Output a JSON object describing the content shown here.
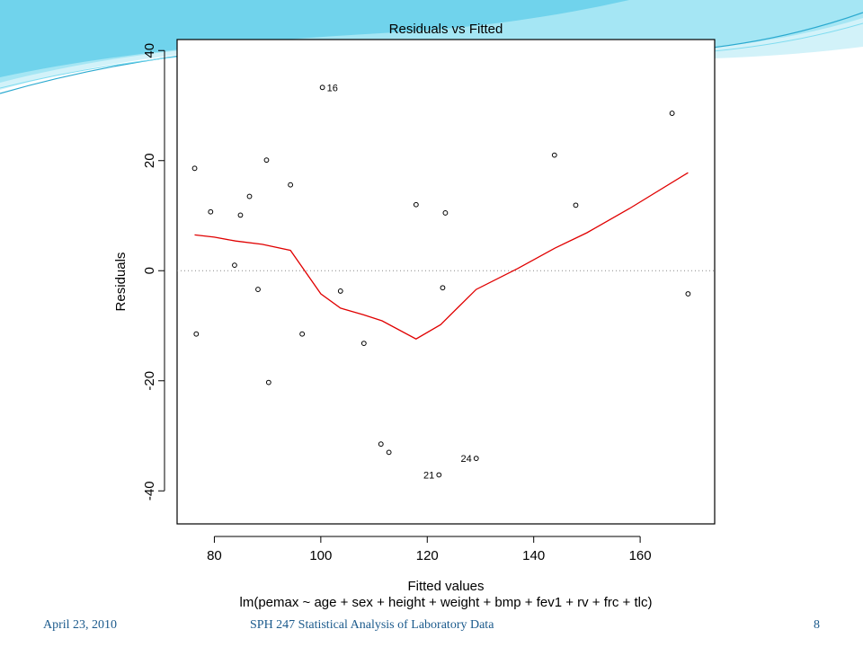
{
  "footer": {
    "date": "April 23, 2010",
    "course": "SPH 247 Statistical Analysis of Laboratory Data",
    "page_number": "8"
  },
  "theme": {
    "accent_light": "#bfeef8",
    "accent_mid": "#6fd6ee",
    "accent_dark": "#2aa9cf",
    "footer_text": "#1b5a8c",
    "smooth_line": "#e00000"
  },
  "chart_data": {
    "type": "scatter",
    "title": "Residuals vs Fitted",
    "xlabel": "Fitted values",
    "subtitle": "lm(pemax ~ age + sex + height + weight + bmp + fev1 + rv + frc + tlc)",
    "ylabel": "Residuals",
    "xlim": [
      73,
      174
    ],
    "ylim": [
      -46,
      42
    ],
    "x_ticks": [
      80,
      100,
      120,
      140,
      160
    ],
    "y_ticks": [
      -40,
      -20,
      0,
      20,
      40
    ],
    "reference_line_y": 0,
    "grid": false,
    "points": [
      {
        "x": 76.3,
        "y": 18.6
      },
      {
        "x": 76.6,
        "y": -11.5
      },
      {
        "x": 79.3,
        "y": 10.7
      },
      {
        "x": 83.8,
        "y": 1.0
      },
      {
        "x": 84.9,
        "y": 10.1
      },
      {
        "x": 86.6,
        "y": 13.5
      },
      {
        "x": 88.2,
        "y": -3.4
      },
      {
        "x": 89.8,
        "y": 20.1
      },
      {
        "x": 90.2,
        "y": -20.3
      },
      {
        "x": 94.3,
        "y": 15.6
      },
      {
        "x": 96.5,
        "y": -11.5
      },
      {
        "x": 100.3,
        "y": 33.3,
        "label": "16"
      },
      {
        "x": 103.7,
        "y": -3.7
      },
      {
        "x": 108.1,
        "y": -13.2
      },
      {
        "x": 111.3,
        "y": -31.5
      },
      {
        "x": 112.8,
        "y": -33.0
      },
      {
        "x": 117.9,
        "y": 12.0
      },
      {
        "x": 122.2,
        "y": -37.1,
        "label": "21"
      },
      {
        "x": 122.9,
        "y": -3.1
      },
      {
        "x": 123.4,
        "y": 10.5
      },
      {
        "x": 129.2,
        "y": -34.1,
        "label": "24"
      },
      {
        "x": 143.9,
        "y": 21.0
      },
      {
        "x": 147.9,
        "y": 11.9
      },
      {
        "x": 166.0,
        "y": 28.6
      },
      {
        "x": 169.0,
        "y": -4.2
      }
    ],
    "smooth_line": {
      "x": [
        76.3,
        80.0,
        84.0,
        89.0,
        94.3,
        100.0,
        103.7,
        108.0,
        111.5,
        117.9,
        122.5,
        129.2,
        137.0,
        144.0,
        150.0,
        158.0,
        169.0
      ],
      "y": [
        6.5,
        6.1,
        5.4,
        4.8,
        3.7,
        -4.2,
        -6.8,
        -8.0,
        -9.1,
        -12.4,
        -9.8,
        -3.4,
        0.4,
        4.1,
        6.9,
        11.3,
        17.8
      ]
    }
  }
}
